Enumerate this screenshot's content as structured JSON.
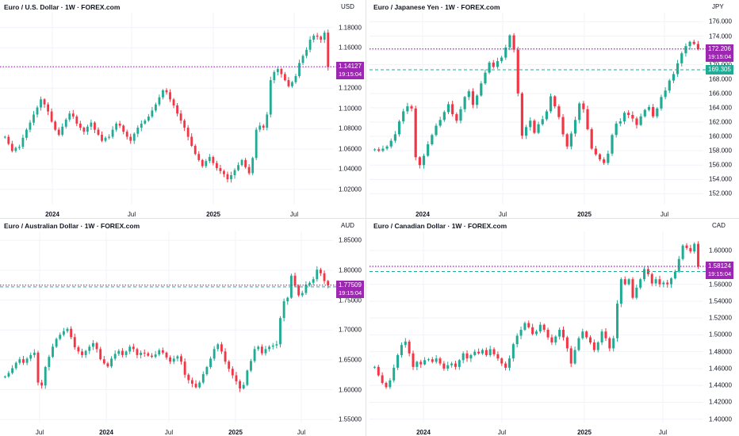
{
  "colors": {
    "up": "#22ab94",
    "down": "#f23645",
    "price_line": "#9c27b0",
    "prev_line": "#22ab94",
    "grid": "#f0f3fa"
  },
  "time_label": "19:15:04",
  "charts": [
    {
      "title": "Euro / U.S. Dollar · 1W · FOREX.com",
      "currency": "USD",
      "price": "1.14127",
      "price_value": 1.14127,
      "y_ticks": [
        "1.18000",
        "1.16000",
        "1.14000",
        "1.12000",
        "1.10000",
        "1.08000",
        "1.06000",
        "1.04000",
        "1.02000"
      ],
      "y_values": [
        1.18,
        1.16,
        1.14,
        1.12,
        1.1,
        1.08,
        1.06,
        1.04,
        1.02
      ],
      "x_ticks": [
        {
          "label": "2024",
          "bold": true
        },
        {
          "label": "Jul",
          "bold": false
        },
        {
          "label": "2025",
          "bold": true
        },
        {
          "label": "Jul",
          "bold": false
        }
      ],
      "ylim": [
        1.005,
        1.19
      ],
      "closes": [
        1.072,
        1.065,
        1.058,
        1.061,
        1.062,
        1.071,
        1.079,
        1.086,
        1.094,
        1.101,
        1.109,
        1.104,
        1.097,
        1.087,
        1.079,
        1.074,
        1.082,
        1.089,
        1.095,
        1.092,
        1.085,
        1.081,
        1.077,
        1.082,
        1.086,
        1.079,
        1.074,
        1.068,
        1.071,
        1.072,
        1.079,
        1.085,
        1.083,
        1.077,
        1.072,
        1.068,
        1.075,
        1.081,
        1.085,
        1.088,
        1.092,
        1.098,
        1.104,
        1.111,
        1.118,
        1.116,
        1.109,
        1.103,
        1.095,
        1.088,
        1.081,
        1.072,
        1.063,
        1.055,
        1.049,
        1.043,
        1.048,
        1.052,
        1.046,
        1.041,
        1.038,
        1.035,
        1.03,
        1.034,
        1.039,
        1.044,
        1.049,
        1.042,
        1.036,
        1.051,
        1.079,
        1.083,
        1.081,
        1.094,
        1.128,
        1.136,
        1.139,
        1.134,
        1.128,
        1.122,
        1.126,
        1.132,
        1.145,
        1.152,
        1.158,
        1.168,
        1.172,
        1.171,
        1.168,
        1.175,
        1.141
      ]
    },
    {
      "title": "Euro / Japanese Yen · 1W · FOREX.com",
      "currency": "JPY",
      "price": "172.206",
      "price_value": 172.206,
      "prev": "169.305",
      "prev_value": 169.305,
      "y_ticks": [
        "176.000",
        "174.000",
        "172.000",
        "170.000",
        "168.000",
        "166.000",
        "164.000",
        "162.000",
        "160.000",
        "158.000",
        "156.000",
        "154.000",
        "152.000"
      ],
      "y_values": [
        176,
        174,
        172,
        170,
        168,
        166,
        164,
        162,
        160,
        158,
        156,
        154,
        152
      ],
      "x_ticks": [
        {
          "label": "2024",
          "bold": true
        },
        {
          "label": "Jul",
          "bold": false
        },
        {
          "label": "2025",
          "bold": true
        },
        {
          "label": "Jul",
          "bold": false
        }
      ],
      "ylim": [
        150.5,
        176.6
      ],
      "closes": [
        158.2,
        158.0,
        158.3,
        158.6,
        159.4,
        160.3,
        162.1,
        163.5,
        164.2,
        163.9,
        157.1,
        156.0,
        157.3,
        158.9,
        160.2,
        161.5,
        162.3,
        163.4,
        164.5,
        163.1,
        162.2,
        163.8,
        165.5,
        166.3,
        164.4,
        165.7,
        167.4,
        168.9,
        170.3,
        169.7,
        170.5,
        171.0,
        172.4,
        174.1,
        172.1,
        166.0,
        160.1,
        161.3,
        162.2,
        160.5,
        161.7,
        162.4,
        163.5,
        165.6,
        164.2,
        162.7,
        160.3,
        158.6,
        160.4,
        162.3,
        164.6,
        163.8,
        161.0,
        158.3,
        157.5,
        156.8,
        156.3,
        157.6,
        160.2,
        161.8,
        162.1,
        163.3,
        163.0,
        162.5,
        161.6,
        162.8,
        163.7,
        164.1,
        162.8,
        163.9,
        165.5,
        166.4,
        167.8,
        168.7,
        170.2,
        171.6,
        172.6,
        173.2,
        172.9,
        172.2
      ]
    },
    {
      "title": "Euro / Australian Dollar · 1W · FOREX.com",
      "currency": "AUD",
      "price": "1.77509",
      "price_value": 1.77509,
      "prev_value": 1.7722,
      "y_ticks": [
        "1.85000",
        "1.80000",
        "1.75000",
        "1.70000",
        "1.65000",
        "1.60000",
        "1.55000"
      ],
      "y_values": [
        1.85,
        1.8,
        1.75,
        1.7,
        1.65,
        1.6,
        1.55
      ],
      "x_ticks": [
        {
          "label": "Jul",
          "bold": false
        },
        {
          "label": "2024",
          "bold": true
        },
        {
          "label": "Jul",
          "bold": false
        },
        {
          "label": "2025",
          "bold": true
        },
        {
          "label": "Jul",
          "bold": false
        }
      ],
      "ylim": [
        1.545,
        1.857
      ],
      "closes": [
        1.622,
        1.628,
        1.636,
        1.645,
        1.651,
        1.645,
        1.652,
        1.658,
        1.662,
        1.612,
        1.607,
        1.638,
        1.655,
        1.672,
        1.685,
        1.692,
        1.698,
        1.702,
        1.688,
        1.671,
        1.664,
        1.658,
        1.665,
        1.672,
        1.678,
        1.668,
        1.651,
        1.644,
        1.639,
        1.652,
        1.66,
        1.665,
        1.658,
        1.664,
        1.672,
        1.668,
        1.658,
        1.662,
        1.661,
        1.657,
        1.655,
        1.659,
        1.666,
        1.662,
        1.654,
        1.647,
        1.652,
        1.656,
        1.647,
        1.625,
        1.616,
        1.61,
        1.604,
        1.612,
        1.626,
        1.638,
        1.652,
        1.668,
        1.676,
        1.664,
        1.647,
        1.635,
        1.624,
        1.614,
        1.602,
        1.608,
        1.632,
        1.648,
        1.668,
        1.672,
        1.661,
        1.668,
        1.672,
        1.674,
        1.676,
        1.72,
        1.748,
        1.754,
        1.791,
        1.774,
        1.758,
        1.762,
        1.776,
        1.779,
        1.785,
        1.801,
        1.795,
        1.782,
        1.775
      ]
    },
    {
      "title": "Euro / Canadian Dollar · 1W · FOREX.com",
      "currency": "CAD",
      "price": "1.58124",
      "price_value": 1.58124,
      "prev_value": 1.5752,
      "y_ticks": [
        "1.60000",
        "1.58000",
        "1.56000",
        "1.54000",
        "1.52000",
        "1.50000",
        "1.48000",
        "1.46000",
        "1.44000",
        "1.42000",
        "1.40000"
      ],
      "y_values": [
        1.6,
        1.58,
        1.56,
        1.54,
        1.52,
        1.5,
        1.48,
        1.46,
        1.44,
        1.42,
        1.4
      ],
      "x_ticks": [
        {
          "label": "2024",
          "bold": true
        },
        {
          "label": "Jul",
          "bold": false
        },
        {
          "label": "2025",
          "bold": true
        },
        {
          "label": "Jul",
          "bold": false
        }
      ],
      "ylim": [
        1.396,
        1.617
      ],
      "closes": [
        1.462,
        1.452,
        1.443,
        1.438,
        1.446,
        1.461,
        1.476,
        1.488,
        1.492,
        1.478,
        1.462,
        1.468,
        1.465,
        1.47,
        1.471,
        1.468,
        1.472,
        1.466,
        1.46,
        1.464,
        1.466,
        1.462,
        1.47,
        1.478,
        1.472,
        1.476,
        1.48,
        1.478,
        1.482,
        1.476,
        1.483,
        1.477,
        1.472,
        1.466,
        1.461,
        1.472,
        1.489,
        1.499,
        1.506,
        1.514,
        1.509,
        1.501,
        1.504,
        1.512,
        1.506,
        1.497,
        1.491,
        1.498,
        1.506,
        1.497,
        1.484,
        1.466,
        1.482,
        1.496,
        1.504,
        1.497,
        1.491,
        1.482,
        1.491,
        1.504,
        1.496,
        1.484,
        1.496,
        1.537,
        1.566,
        1.56,
        1.566,
        1.544,
        1.556,
        1.566,
        1.578,
        1.572,
        1.561,
        1.566,
        1.56,
        1.562,
        1.56,
        1.567,
        1.575,
        1.59,
        1.606,
        1.603,
        1.599,
        1.608,
        1.581
      ]
    }
  ]
}
